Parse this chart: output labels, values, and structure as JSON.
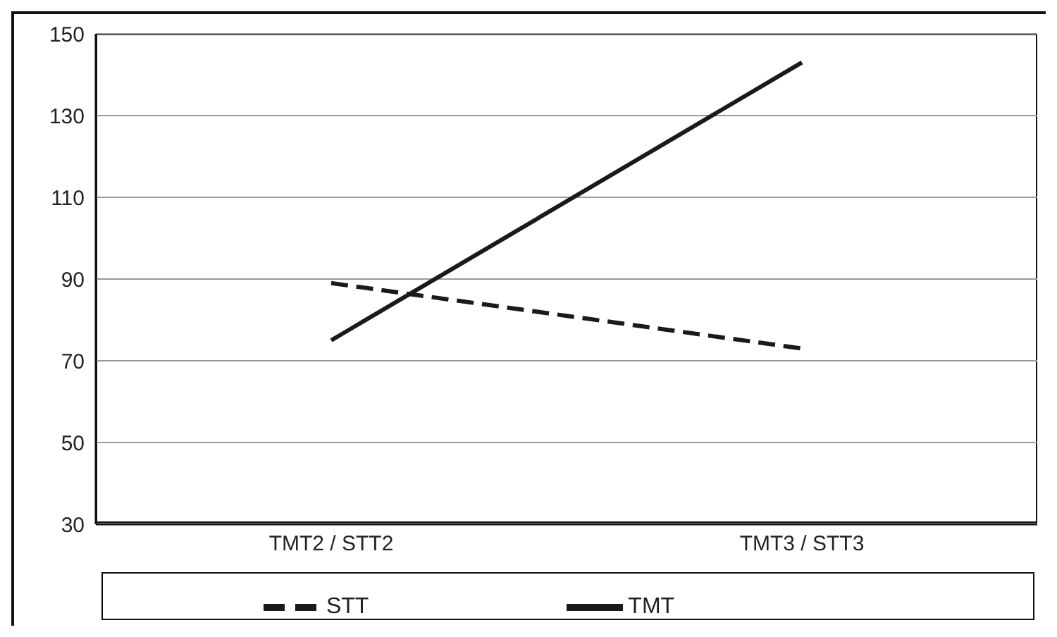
{
  "chart_data": {
    "type": "line",
    "categories": [
      "TMT2 / STT2",
      "TMT3 / STT3"
    ],
    "series": [
      {
        "name": "STT",
        "color": "#1a1a1a",
        "values": [
          89,
          73
        ],
        "line_style": "dashed"
      },
      {
        "name": "TMT",
        "color": "#1a1a1a",
        "values": [
          75,
          143
        ],
        "line_style": "solid"
      }
    ],
    "ylim": [
      30,
      150
    ],
    "yticks": [
      30,
      50,
      70,
      90,
      110,
      130,
      150
    ],
    "grid": "y",
    "legend": "bottom",
    "marker": "none"
  }
}
